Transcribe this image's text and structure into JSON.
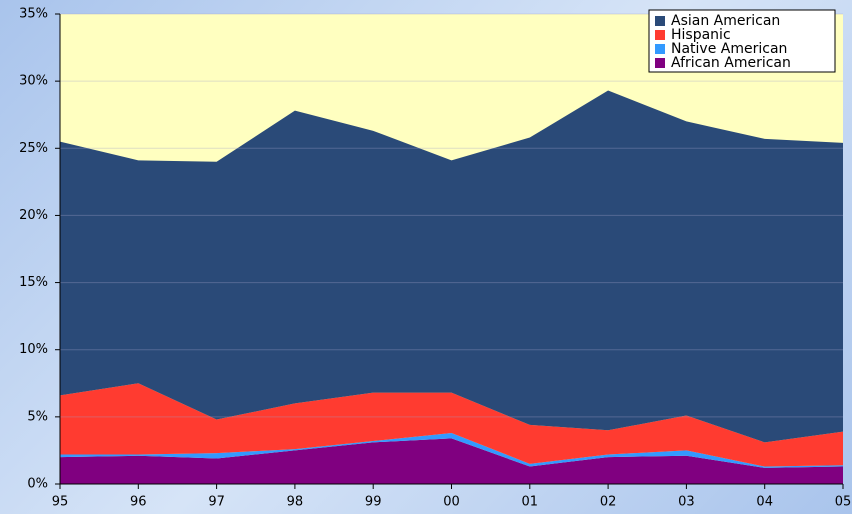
{
  "chart_data": {
    "type": "stacked_area",
    "categories": [
      "95",
      "96",
      "97",
      "98",
      "99",
      "00",
      "01",
      "02",
      "03",
      "04",
      "05"
    ],
    "series": [
      {
        "name": "African American",
        "color": "#800080",
        "values": [
          2.0,
          2.1,
          1.9,
          2.5,
          3.1,
          3.4,
          1.3,
          2.0,
          2.1,
          1.2,
          1.3
        ]
      },
      {
        "name": "Native American",
        "color": "#3399ff",
        "values": [
          0.2,
          0.1,
          0.4,
          0.1,
          0.1,
          0.4,
          0.2,
          0.2,
          0.4,
          0.1,
          0.1
        ]
      },
      {
        "name": "Hispanic",
        "color": "#ff3b30",
        "values": [
          4.4,
          5.3,
          2.5,
          3.4,
          3.6,
          3.0,
          2.9,
          1.8,
          2.6,
          1.8,
          2.5
        ]
      },
      {
        "name": "Asian American",
        "color": "#2a4a78",
        "values": [
          18.9,
          16.6,
          19.2,
          21.8,
          19.5,
          17.3,
          21.4,
          25.3,
          21.9,
          22.6,
          21.5
        ]
      }
    ],
    "ylim": [
      0,
      35
    ],
    "yticks": [
      {
        "value": 0,
        "label": "0%"
      },
      {
        "value": 5,
        "label": "5%"
      },
      {
        "value": 10,
        "label": "10%"
      },
      {
        "value": 15,
        "label": "15%"
      },
      {
        "value": 20,
        "label": "20%"
      },
      {
        "value": 25,
        "label": "25%"
      },
      {
        "value": 30,
        "label": "30%"
      },
      {
        "value": 35,
        "label": "35%"
      }
    ],
    "grid": true,
    "legend": "top-right",
    "plot_background": "#ffffc0"
  }
}
